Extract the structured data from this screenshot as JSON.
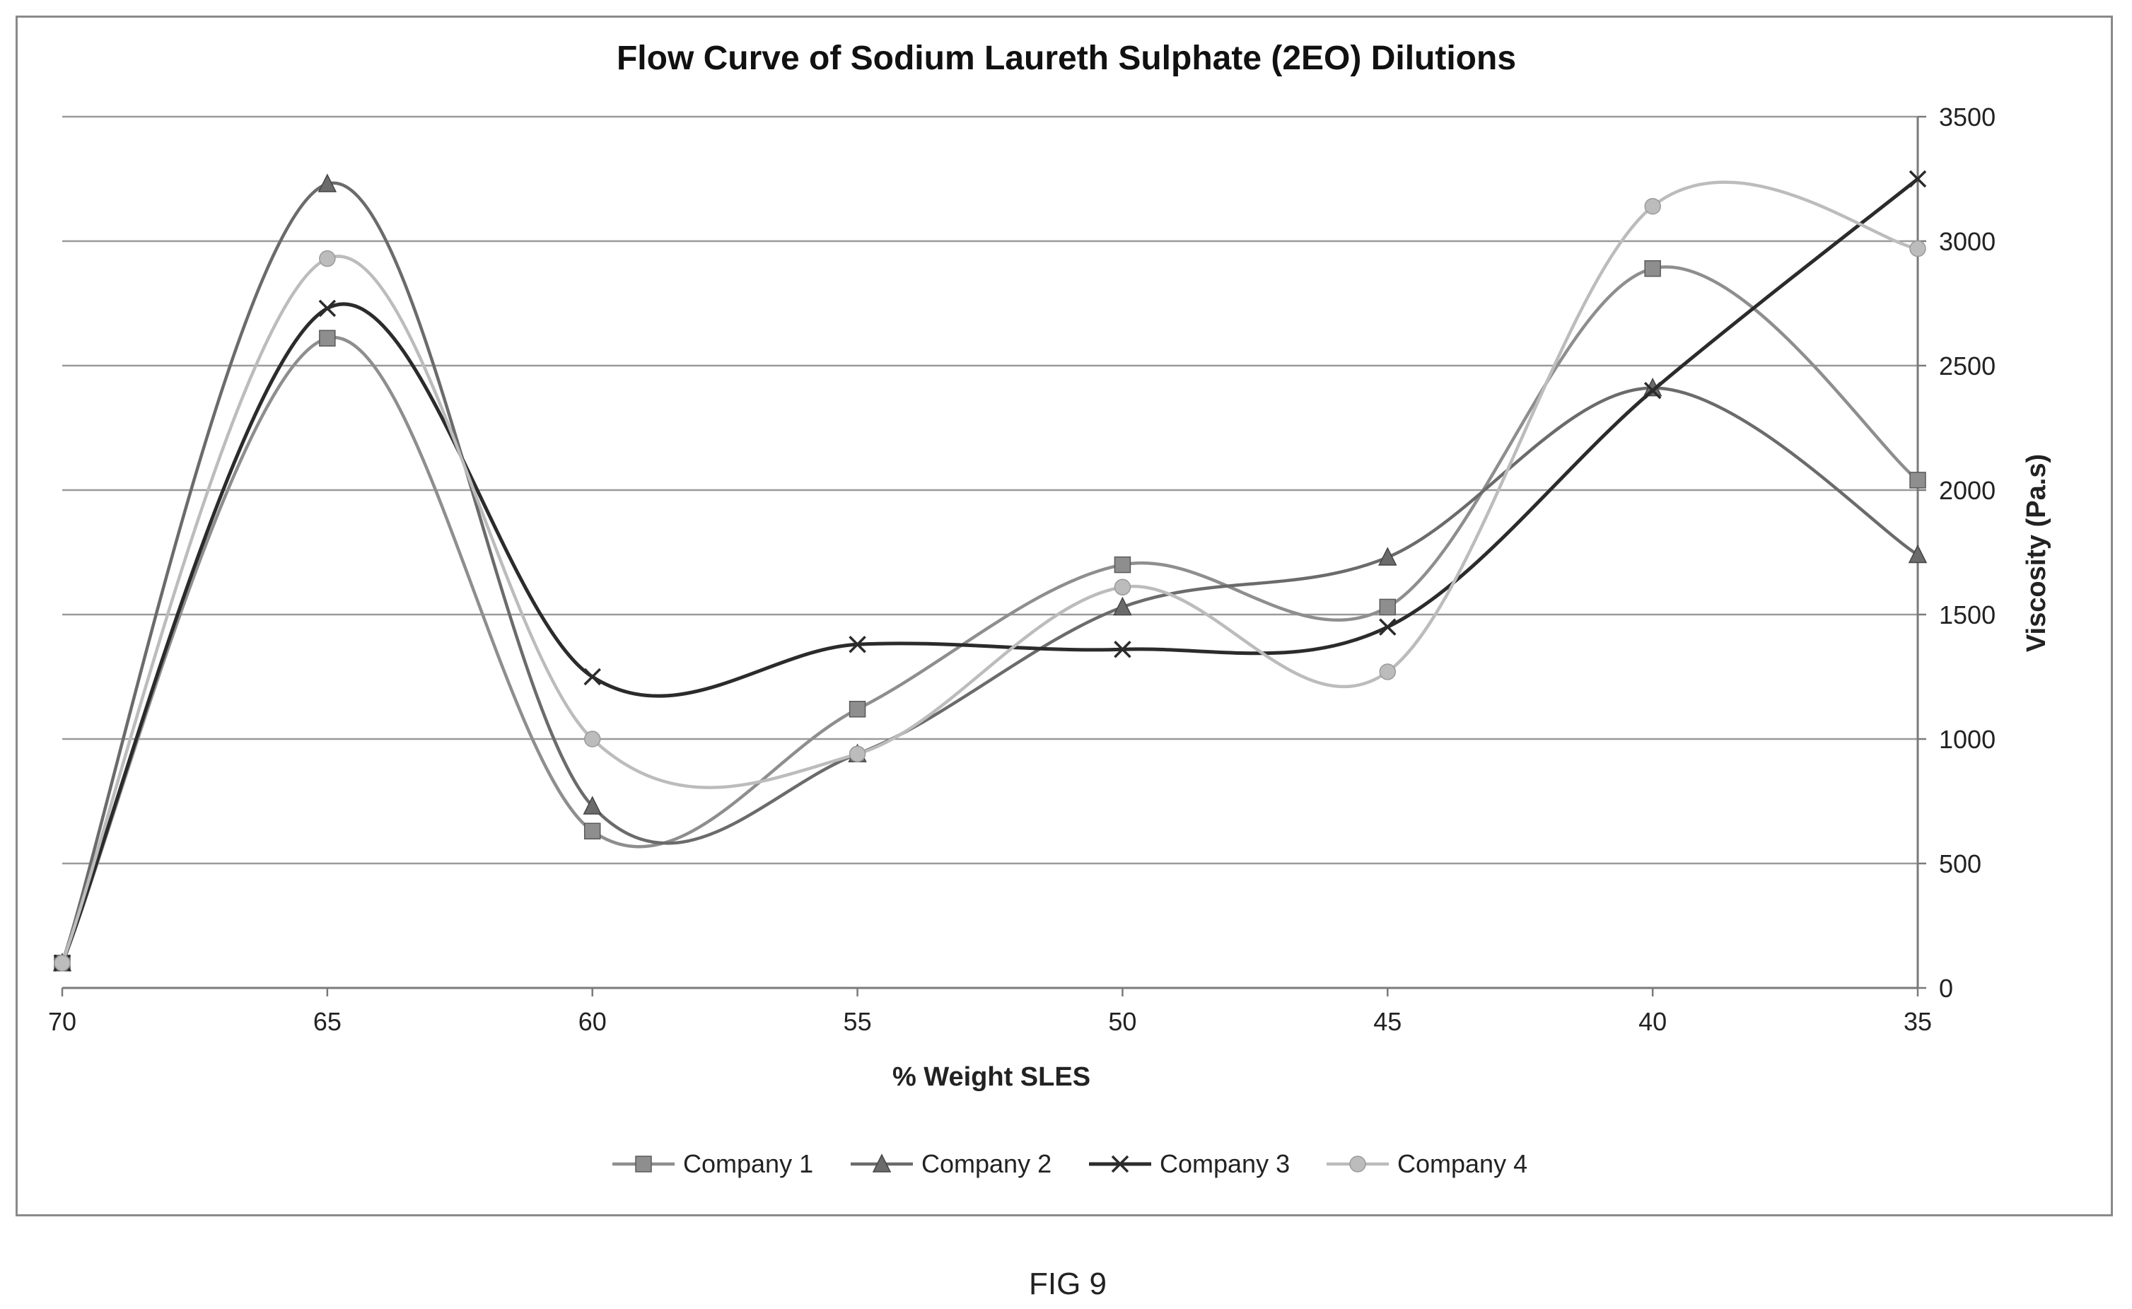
{
  "figure_caption": "FIG 9",
  "chart_data": {
    "type": "line",
    "title": "Flow Curve of Sodium Laureth Sulphate (2EO) Dilutions",
    "xlabel": "% Weight SLES",
    "ylabel": "Viscosity (Pa.s)",
    "x": [
      70,
      65,
      60,
      55,
      50,
      45,
      40,
      35
    ],
    "x_tick_labels": [
      "70",
      "65",
      "60",
      "55",
      "50",
      "45",
      "40",
      "35"
    ],
    "x_reversed": true,
    "xlim": [
      70,
      35
    ],
    "ylim": [
      0,
      3500
    ],
    "y_ticks": [
      0,
      500,
      1000,
      1500,
      2000,
      2500,
      3000,
      3500
    ],
    "y_tick_labels": [
      "0",
      "500",
      "1000",
      "1500",
      "2000",
      "2500",
      "3000",
      "3500"
    ],
    "y_axis_side": "right",
    "smooth_lines": true,
    "grid": "horizontal",
    "legend_position": "bottom",
    "series": [
      {
        "name": "Company 1",
        "marker": "square",
        "color": "#8e8e8e",
        "values": [
          100,
          2610,
          630,
          1120,
          1700,
          1530,
          2890,
          2040
        ]
      },
      {
        "name": "Company 2",
        "marker": "triangle",
        "color": "#6b6b6b",
        "values": [
          100,
          3230,
          730,
          940,
          1530,
          1730,
          2410,
          1740
        ]
      },
      {
        "name": "Company 3",
        "marker": "x",
        "color": "#2b2b2b",
        "values": [
          100,
          2730,
          1250,
          1380,
          1360,
          1450,
          2400,
          3250
        ]
      },
      {
        "name": "Company 4",
        "marker": "circle",
        "color": "#bcbcbc",
        "values": [
          100,
          2930,
          1000,
          940,
          1610,
          1270,
          3140,
          2970
        ]
      }
    ]
  }
}
